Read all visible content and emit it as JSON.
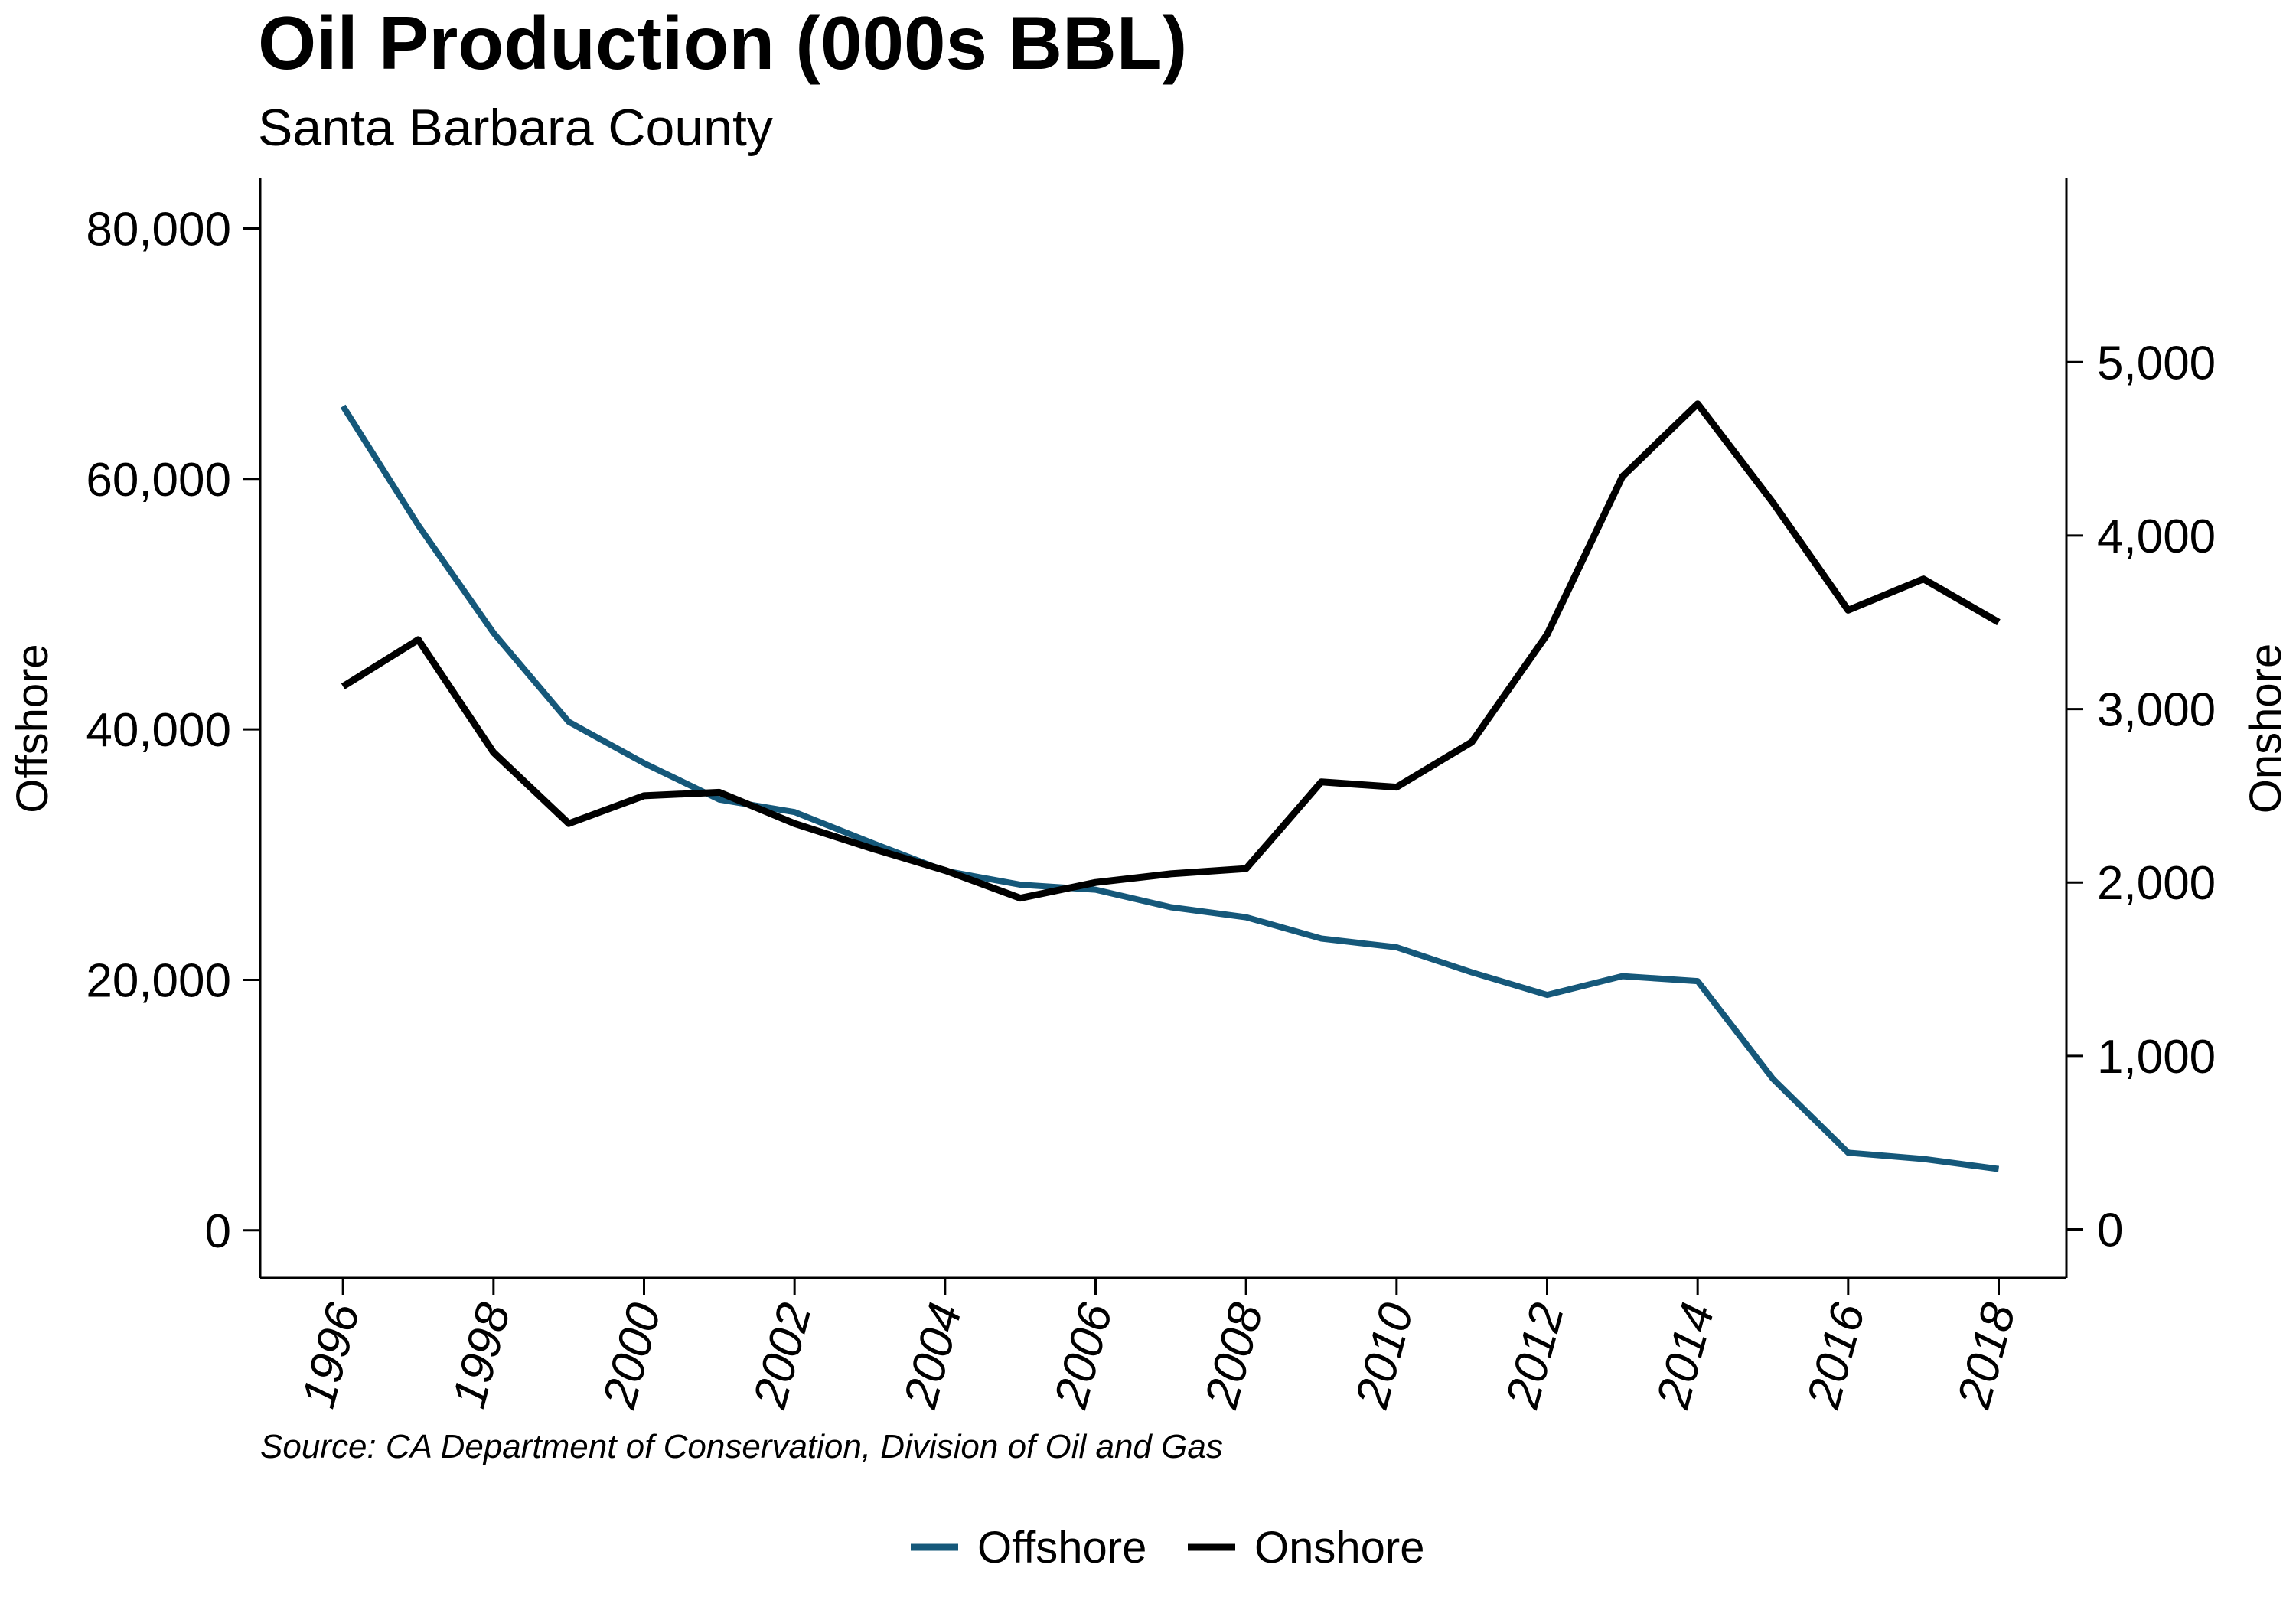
{
  "chart_data": {
    "type": "line",
    "title": "Oil Production (000s BBL)",
    "subtitle": "Santa Barbara County",
    "note": "Source: CA Department of Conservation, Division of Oil and Gas",
    "x": [
      1996,
      1997,
      1998,
      1999,
      2000,
      2001,
      2002,
      2003,
      2004,
      2005,
      2006,
      2007,
      2008,
      2009,
      2010,
      2011,
      2012,
      2013,
      2014,
      2015,
      2016,
      2017,
      2018
    ],
    "x_tick_labels": [
      "1996",
      "1998",
      "2000",
      "2002",
      "2004",
      "2006",
      "2008",
      "2010",
      "2012",
      "2014",
      "2016",
      "2018"
    ],
    "x_ticks": [
      1996,
      1998,
      2000,
      2002,
      2004,
      2006,
      2008,
      2010,
      2012,
      2014,
      2016,
      2018
    ],
    "x_range": [
      1994.9,
      2018.9
    ],
    "y_left": {
      "label": "Offshore",
      "range": [
        -3800,
        84000
      ],
      "ticks": [
        0,
        20000,
        40000,
        60000,
        80000
      ],
      "tick_labels": [
        "0",
        "20,000",
        "40,000",
        "60,000",
        "80,000"
      ]
    },
    "y_right": {
      "label": "Onshore",
      "range": [
        -280,
        6060
      ],
      "ticks": [
        0,
        1000,
        2000,
        3000,
        4000,
        5000
      ],
      "tick_labels": [
        "0",
        "1,000",
        "2,000",
        "3,000",
        "4,000",
        "5,000"
      ]
    },
    "series": [
      {
        "name": "Offshore",
        "axis": "left",
        "color": "#15587a",
        "values": [
          65800,
          56300,
          47700,
          40600,
          37300,
          34400,
          33400,
          31000,
          28700,
          27600,
          27200,
          25800,
          25000,
          23300,
          22600,
          20600,
          18800,
          20300,
          19900,
          12100,
          6200,
          5700,
          4900
        ]
      },
      {
        "name": "Onshore",
        "axis": "right",
        "color": "#000000",
        "values": [
          3130,
          3400,
          2750,
          2340,
          2500,
          2520,
          2340,
          2200,
          2070,
          1910,
          2000,
          2050,
          2080,
          2580,
          2550,
          2810,
          3430,
          4340,
          4760,
          4190,
          3570,
          3750,
          3500
        ]
      }
    ],
    "legend": {
      "position": "bottom",
      "entries": [
        "Offshore",
        "Onshore"
      ]
    },
    "grid": false
  }
}
